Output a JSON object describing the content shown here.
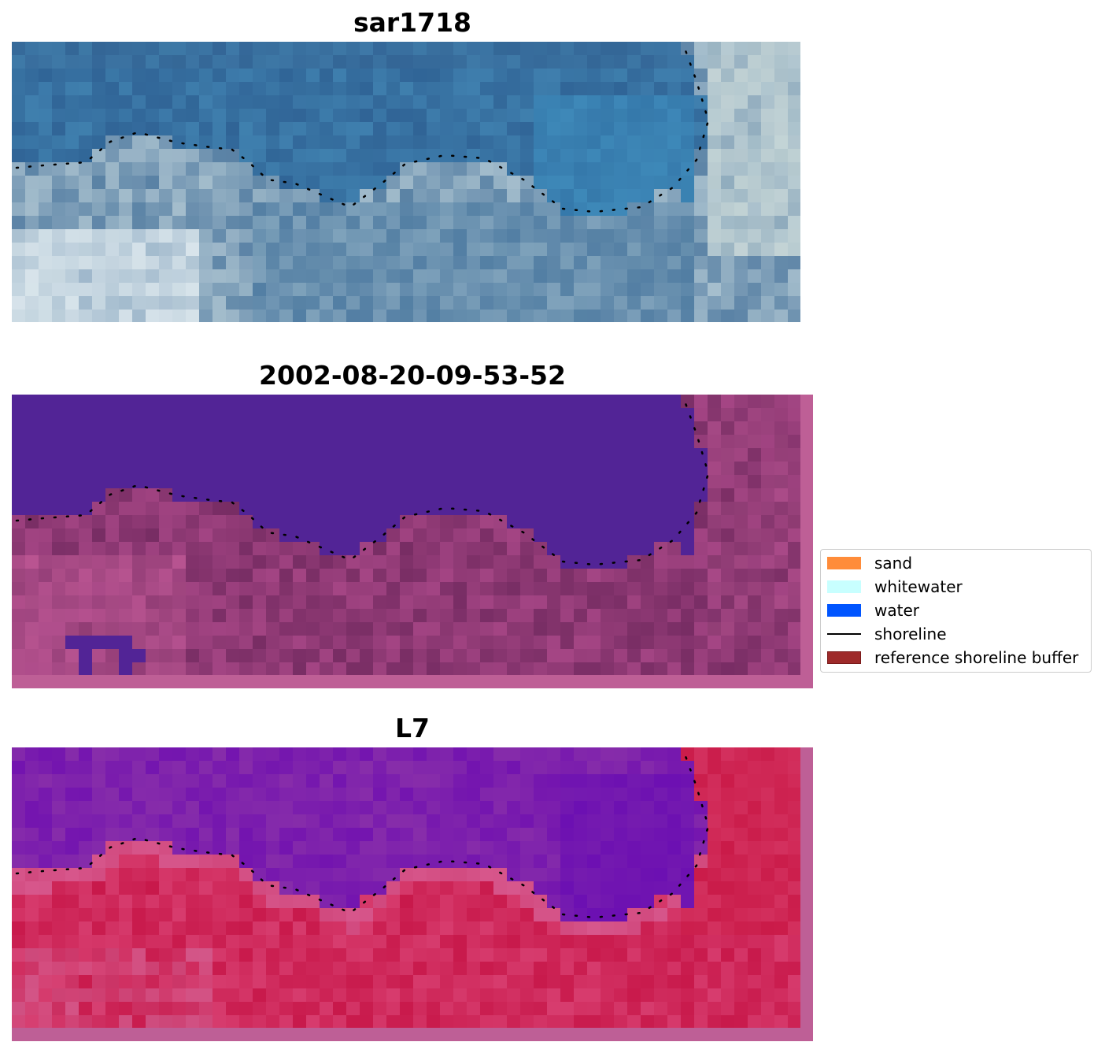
{
  "panels": [
    {
      "title": "sar1718",
      "variant": "rgb"
    },
    {
      "title": "2002-08-20-09-53-52",
      "variant": "classified"
    },
    {
      "title": "L7",
      "variant": "index"
    }
  ],
  "legend": {
    "items": [
      {
        "label": "sand",
        "color": "#ff8c3a",
        "kind": "patch"
      },
      {
        "label": "whitewater",
        "color": "#c8ffff",
        "kind": "patch"
      },
      {
        "label": "water",
        "color": "#0055ff",
        "kind": "patch"
      },
      {
        "label": "shoreline",
        "color": "#000000",
        "kind": "line"
      },
      {
        "label": "reference shoreline buffer",
        "color": "#9e2a2a",
        "kind": "patch"
      }
    ]
  }
}
